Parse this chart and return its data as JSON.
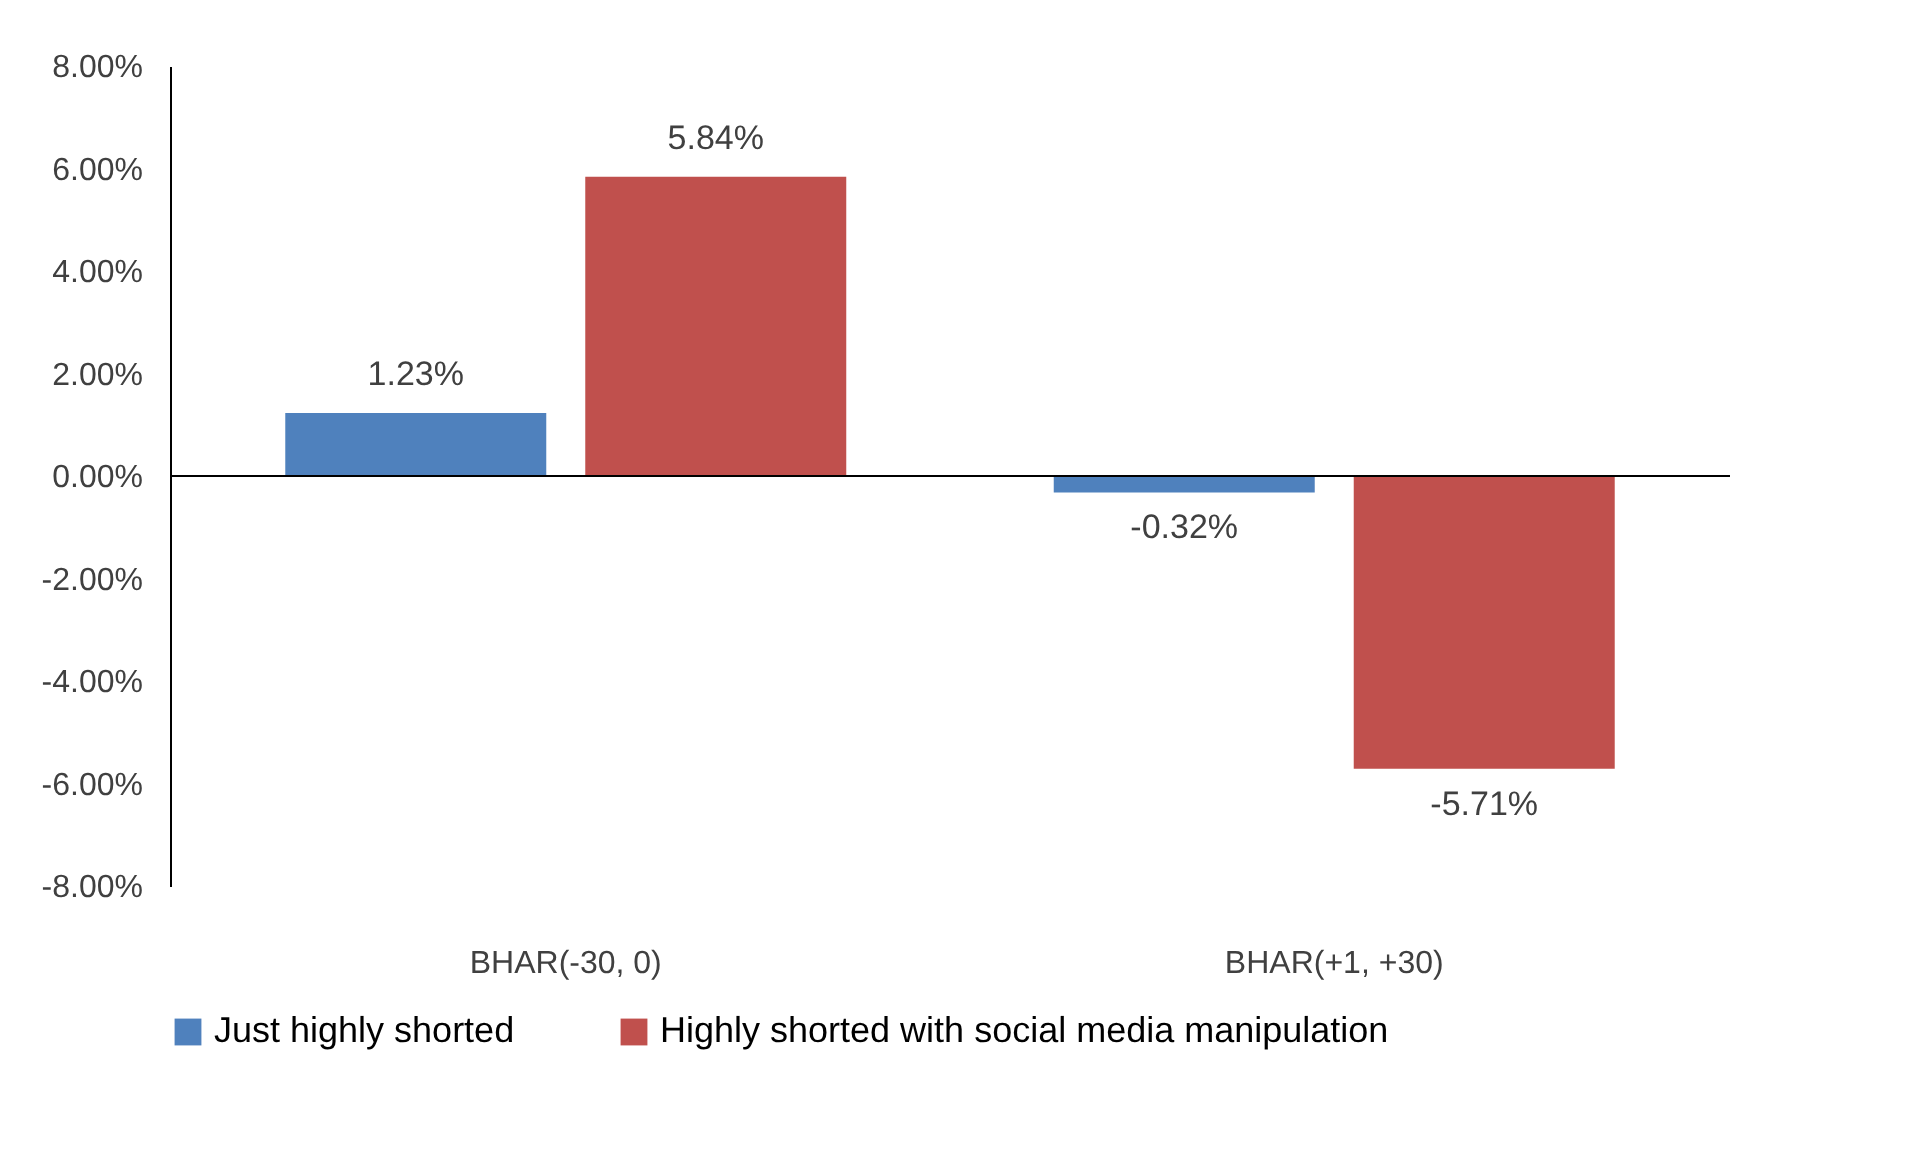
{
  "chart_data": {
    "type": "bar",
    "categories": [
      "BHAR(-30, 0)",
      "BHAR(+1, +30)"
    ],
    "series": [
      {
        "name": "Just highly shorted",
        "color": "#4f81bd",
        "values": [
          1.23,
          -0.32
        ],
        "value_labels": [
          "1.23%",
          "-0.32%"
        ]
      },
      {
        "name": "Highly shorted with social media manipulation",
        "color": "#c0504d",
        "values": [
          5.84,
          -5.71
        ],
        "value_labels": [
          "5.84%",
          "-5.71%"
        ]
      }
    ],
    "ylim": [
      -8,
      8
    ],
    "yticks": [
      {
        "value": -8,
        "label": "-8.00%"
      },
      {
        "value": -6,
        "label": "-6.00%"
      },
      {
        "value": -4,
        "label": "-4.00%"
      },
      {
        "value": -2,
        "label": "-2.00%"
      },
      {
        "value": 0,
        "label": "0.00%"
      },
      {
        "value": 2,
        "label": "2.00%"
      },
      {
        "value": 4,
        "label": "4.00%"
      },
      {
        "value": 6,
        "label": "6.00%"
      },
      {
        "value": 8,
        "label": "8.00%"
      }
    ],
    "ref_lines": [
      {
        "axis": "y",
        "value": 0,
        "color": "#000000"
      }
    ],
    "grid": false,
    "legend": "bottom"
  }
}
